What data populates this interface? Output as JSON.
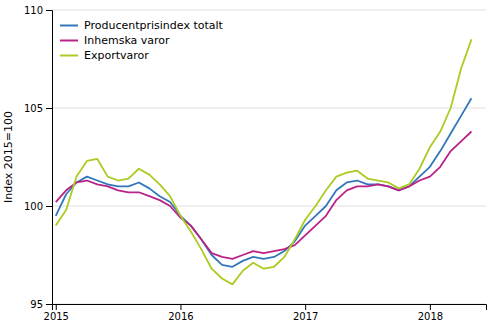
{
  "chart_data": {
    "type": "line",
    "y_label": "Index 2015=100",
    "x": [
      2015,
      2015.0833333333333,
      2015.1666666666667,
      2015.25,
      2015.3333333333333,
      2015.4166666666667,
      2015.5,
      2015.5833333333333,
      2015.6666666666667,
      2015.75,
      2015.8333333333333,
      2015.9166666666667,
      2016,
      2016.0833333333333,
      2016.1666666666667,
      2016.25,
      2016.3333333333333,
      2016.4166666666667,
      2016.5,
      2016.5833333333333,
      2016.6666666666667,
      2016.75,
      2016.8333333333333,
      2016.9166666666667,
      2017,
      2017.0833333333333,
      2017.1666666666667,
      2017.25,
      2017.3333333333333,
      2017.4166666666667,
      2017.5,
      2017.5833333333333,
      2017.6666666666667,
      2017.75,
      2017.8333333333333,
      2017.9166666666667,
      2018,
      2018.0833333333333,
      2018.1666666666667,
      2018.25,
      2018.3333333333333
    ],
    "series": [
      {
        "name": "Producentprisindex totalt",
        "color": "#3377bb",
        "values": [
          99.5,
          100.6,
          101.2,
          101.5,
          101.3,
          101.1,
          101.0,
          101.0,
          101.2,
          100.9,
          100.5,
          100.2,
          99.5,
          99.0,
          98.3,
          97.5,
          97.0,
          96.9,
          97.2,
          97.4,
          97.3,
          97.4,
          97.7,
          98.2,
          99.0,
          99.5,
          100.0,
          100.8,
          101.2,
          101.3,
          101.1,
          101.1,
          101.0,
          100.8,
          101.0,
          101.5,
          102.0,
          102.8,
          103.7,
          104.6,
          105.5
        ]
      },
      {
        "name": "Inhemska varor",
        "color": "#bb2288",
        "values": [
          100.2,
          100.8,
          101.2,
          101.3,
          101.1,
          101.0,
          100.8,
          100.7,
          100.7,
          100.5,
          100.3,
          100.0,
          99.4,
          99.0,
          98.3,
          97.6,
          97.4,
          97.3,
          97.5,
          97.7,
          97.6,
          97.7,
          97.8,
          98.0,
          98.5,
          99.0,
          99.5,
          100.3,
          100.8,
          101.0,
          101.0,
          101.1,
          101.0,
          100.8,
          101.0,
          101.3,
          101.5,
          102.0,
          102.8,
          103.3,
          103.8
        ]
      },
      {
        "name": "Exportvaror",
        "color": "#aacc22",
        "values": [
          99.0,
          99.8,
          101.5,
          102.3,
          102.4,
          101.5,
          101.3,
          101.4,
          101.9,
          101.6,
          101.1,
          100.5,
          99.5,
          98.7,
          97.8,
          96.8,
          96.3,
          96.0,
          96.7,
          97.1,
          96.8,
          96.9,
          97.4,
          98.3,
          99.3,
          100.0,
          100.8,
          101.5,
          101.7,
          101.8,
          101.4,
          101.3,
          101.2,
          100.9,
          101.1,
          101.9,
          103.0,
          103.8,
          105.0,
          107.0,
          108.5
        ]
      }
    ],
    "xlim": [
      2014.97,
      2018.45
    ],
    "xticks": [
      2015,
      2016,
      2017,
      2018
    ],
    "ylim": [
      95,
      110
    ],
    "yticks": [
      95,
      100,
      105,
      110
    ],
    "grid": "y",
    "legend": "upper left"
  }
}
